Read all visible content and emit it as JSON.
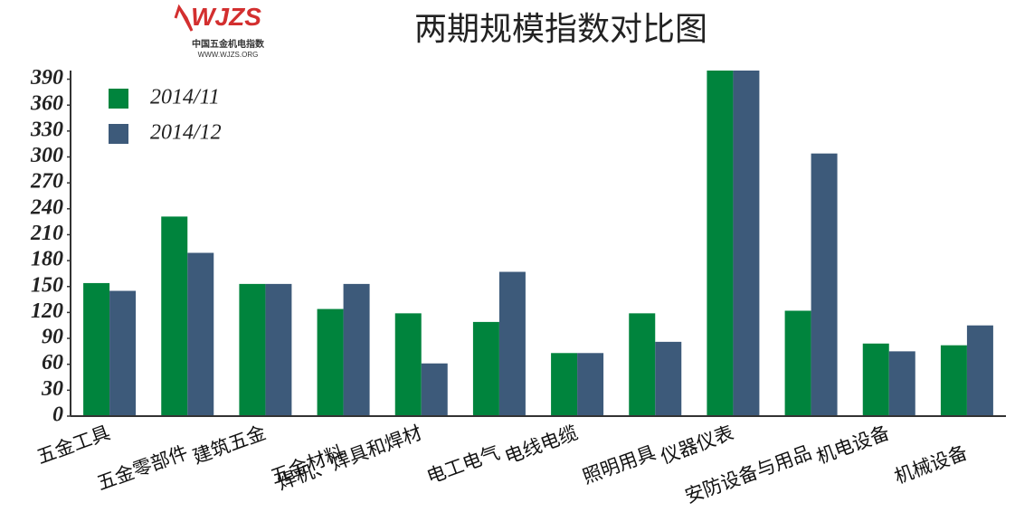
{
  "chart_data": {
    "type": "bar",
    "title": "两期规模指数对比图",
    "logo": {
      "mark": "WJZS",
      "name": "中国五金机电指数",
      "url": "WWW.WJZS.ORG"
    },
    "categories": [
      "五金工具",
      "五金零部件",
      "建筑五金",
      "五金材料",
      "焊机、焊具和焊材",
      "电工电气",
      "电线电缆",
      "照明用具",
      "仪器仪表",
      "安防设备与用品",
      "机电设备",
      "机械设备"
    ],
    "series": [
      {
        "name": "2014/11",
        "color": "#00843d",
        "values": [
          154,
          231,
          153,
          124,
          119,
          109,
          73,
          119,
          400,
          122,
          84,
          82
        ]
      },
      {
        "name": "2014/12",
        "color": "#3d5a7a",
        "values": [
          145,
          189,
          153,
          153,
          61,
          167,
          73,
          86,
          400,
          304,
          75,
          105
        ]
      }
    ],
    "ylim": [
      0,
      400
    ],
    "yticks": [
      0,
      30,
      60,
      90,
      120,
      150,
      180,
      210,
      240,
      270,
      300,
      330,
      360,
      390
    ],
    "legend": "top-left",
    "grid": false
  }
}
